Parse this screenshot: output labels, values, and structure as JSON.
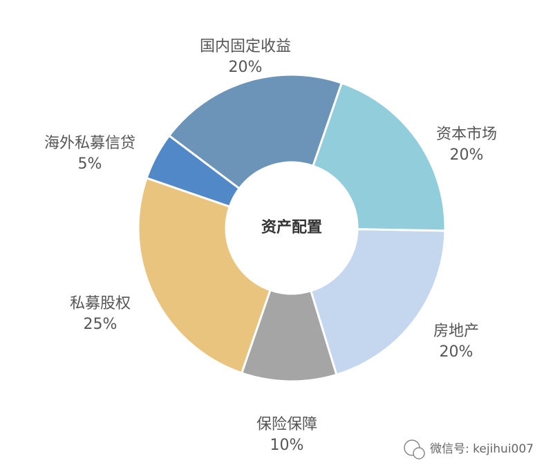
{
  "chart_data": {
    "type": "donut",
    "center_label": "资产配置",
    "categories": [
      "资本市场",
      "房地产",
      "保险保障",
      "私募股权",
      "海外私募信贷",
      "国内固定收益"
    ],
    "values": [
      20,
      20,
      10,
      25,
      5,
      20
    ],
    "value_labels": [
      "20%",
      "20%",
      "10%",
      "25%",
      "5%",
      "20%"
    ],
    "colors": [
      "#92cddc",
      "#c5d6ef",
      "#a5a5a5",
      "#e9c47f",
      "#5088c8",
      "#6c93b8"
    ]
  },
  "watermark": "微信号: kejihui007"
}
